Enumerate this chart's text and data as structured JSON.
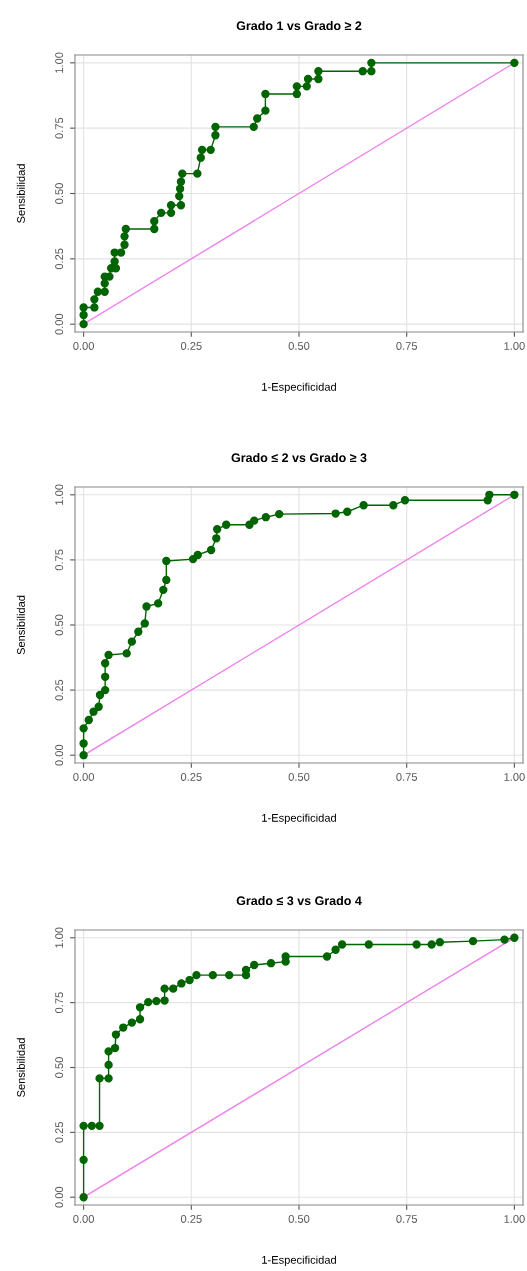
{
  "chart_data": [
    {
      "type": "line",
      "title": "Grado 1 vs Grado ≥ 2",
      "xlabel": "1-Especificidad",
      "ylabel": "Sensibilidad",
      "xlim": [
        -0.02,
        1.02
      ],
      "ylim": [
        -0.03,
        1.03
      ],
      "xticks": [
        {
          "value": 0,
          "label": "0.00"
        },
        {
          "value": 0.25,
          "label": "0.25"
        },
        {
          "value": 0.5,
          "label": "0.50"
        },
        {
          "value": 0.75,
          "label": "0.75"
        },
        {
          "value": 1,
          "label": "1.00"
        }
      ],
      "yticks": [
        {
          "value": 0,
          "label": "0.00"
        },
        {
          "value": 0.25,
          "label": "0.25"
        },
        {
          "value": 0.5,
          "label": "0.50"
        },
        {
          "value": 0.75,
          "label": "0.75"
        },
        {
          "value": 1,
          "label": "1.00"
        }
      ],
      "grid": true,
      "series": [
        {
          "color": "#ee82ee",
          "marker": "none",
          "x": [
            0,
            1
          ],
          "values": [
            0,
            1
          ]
        },
        {
          "color": "#006400",
          "marker": "circle",
          "x": [
            0,
            0,
            0,
            0.025,
            0.025,
            0.033,
            0.049,
            0.049,
            0.049,
            0.06,
            0.064,
            0.075,
            0.072,
            0.072,
            0.087,
            0.095,
            0.095,
            0.098,
            0.164,
            0.164,
            0.18,
            0.203,
            0.203,
            0.226,
            0.222,
            0.224,
            0.226,
            0.229,
            0.264,
            0.272,
            0.275,
            0.295,
            0.306,
            0.306,
            0.395,
            0.403,
            0.422,
            0.422,
            0.495,
            0.495,
            0.518,
            0.521,
            0.545,
            0.545,
            0.648,
            0.668,
            0.668,
            1
          ],
          "values": [
            0,
            0.035,
            0.064,
            0.064,
            0.095,
            0.124,
            0.124,
            0.156,
            0.182,
            0.182,
            0.214,
            0.214,
            0.24,
            0.274,
            0.274,
            0.304,
            0.336,
            0.364,
            0.364,
            0.394,
            0.426,
            0.426,
            0.455,
            0.455,
            0.49,
            0.518,
            0.545,
            0.576,
            0.576,
            0.637,
            0.667,
            0.667,
            0.723,
            0.755,
            0.755,
            0.787,
            0.817,
            0.881,
            0.881,
            0.91,
            0.91,
            0.938,
            0.938,
            0.968,
            0.968,
            0.968,
            1,
            1
          ]
        }
      ]
    },
    {
      "type": "line",
      "title": "Grado ≤ 2 vs Grado ≥ 3",
      "xlabel": "1-Especificidad",
      "ylabel": "Sensibilidad",
      "xlim": [
        -0.02,
        1.02
      ],
      "ylim": [
        -0.03,
        1.03
      ],
      "xticks": [
        {
          "value": 0,
          "label": "0.00"
        },
        {
          "value": 0.25,
          "label": "0.25"
        },
        {
          "value": 0.5,
          "label": "0.50"
        },
        {
          "value": 0.75,
          "label": "0.75"
        },
        {
          "value": 1,
          "label": "1.00"
        }
      ],
      "yticks": [
        {
          "value": 0,
          "label": "0.00"
        },
        {
          "value": 0.25,
          "label": "0.25"
        },
        {
          "value": 0.5,
          "label": "0.50"
        },
        {
          "value": 0.75,
          "label": "0.75"
        },
        {
          "value": 1,
          "label": "1.00"
        }
      ],
      "grid": true,
      "series": [
        {
          "color": "#ee82ee",
          "marker": "none",
          "x": [
            0,
            1
          ],
          "values": [
            0,
            1
          ]
        },
        {
          "color": "#006400",
          "marker": "circle",
          "x": [
            0,
            0,
            0,
            0.012,
            0.023,
            0.035,
            0.038,
            0.05,
            0.05,
            0.05,
            0.058,
            0.1,
            0.112,
            0.127,
            0.142,
            0.146,
            0.173,
            0.185,
            0.192,
            0.192,
            0.254,
            0.265,
            0.296,
            0.308,
            0.31,
            0.331,
            0.385,
            0.396,
            0.423,
            0.454,
            0.585,
            0.612,
            0.65,
            0.719,
            0.746,
            0.938,
            0.942,
            1
          ],
          "values": [
            0,
            0.045,
            0.103,
            0.135,
            0.167,
            0.186,
            0.231,
            0.25,
            0.301,
            0.353,
            0.385,
            0.391,
            0.436,
            0.474,
            0.506,
            0.571,
            0.583,
            0.635,
            0.673,
            0.746,
            0.753,
            0.769,
            0.788,
            0.833,
            0.868,
            0.885,
            0.885,
            0.901,
            0.914,
            0.926,
            0.928,
            0.935,
            0.96,
            0.96,
            0.979,
            0.979,
            1,
            1
          ]
        }
      ]
    },
    {
      "type": "line",
      "title": "Grado ≤ 3 vs Grado 4",
      "xlabel": "1-Especificidad",
      "ylabel": "Sensibilidad",
      "xlim": [
        -0.02,
        1.02
      ],
      "ylim": [
        -0.03,
        1.03
      ],
      "xticks": [
        {
          "value": 0,
          "label": "0.00"
        },
        {
          "value": 0.25,
          "label": "0.25"
        },
        {
          "value": 0.5,
          "label": "0.50"
        },
        {
          "value": 0.75,
          "label": "0.75"
        },
        {
          "value": 1,
          "label": "1.00"
        }
      ],
      "yticks": [
        {
          "value": 0,
          "label": "0.00"
        },
        {
          "value": 0.25,
          "label": "0.25"
        },
        {
          "value": 0.5,
          "label": "0.50"
        },
        {
          "value": 0.75,
          "label": "0.75"
        },
        {
          "value": 1,
          "label": "1.00"
        }
      ],
      "grid": true,
      "series": [
        {
          "color": "#ee82ee",
          "marker": "none",
          "x": [
            0,
            1
          ],
          "values": [
            0,
            1
          ]
        },
        {
          "color": "#006400",
          "marker": "circle",
          "x": [
            0,
            0,
            0,
            0.019,
            0.037,
            0.037,
            0.058,
            0.058,
            0.058,
            0.073,
            0.075,
            0.092,
            0.112,
            0.131,
            0.131,
            0.15,
            0.169,
            0.188,
            0.188,
            0.208,
            0.227,
            0.246,
            0.262,
            0.3,
            0.338,
            0.377,
            0.377,
            0.396,
            0.435,
            0.469,
            0.469,
            0.565,
            0.585,
            0.6,
            0.662,
            0.773,
            0.808,
            0.827,
            0.904,
            0.977,
            1
          ],
          "values": [
            0,
            0.144,
            0.275,
            0.275,
            0.275,
            0.458,
            0.458,
            0.51,
            0.562,
            0.575,
            0.627,
            0.654,
            0.673,
            0.686,
            0.732,
            0.752,
            0.756,
            0.758,
            0.804,
            0.804,
            0.824,
            0.837,
            0.856,
            0.856,
            0.856,
            0.856,
            0.876,
            0.895,
            0.902,
            0.908,
            0.928,
            0.928,
            0.954,
            0.974,
            0.974,
            0.974,
            0.974,
            0.983,
            0.987,
            0.993,
            1
          ]
        }
      ]
    }
  ]
}
